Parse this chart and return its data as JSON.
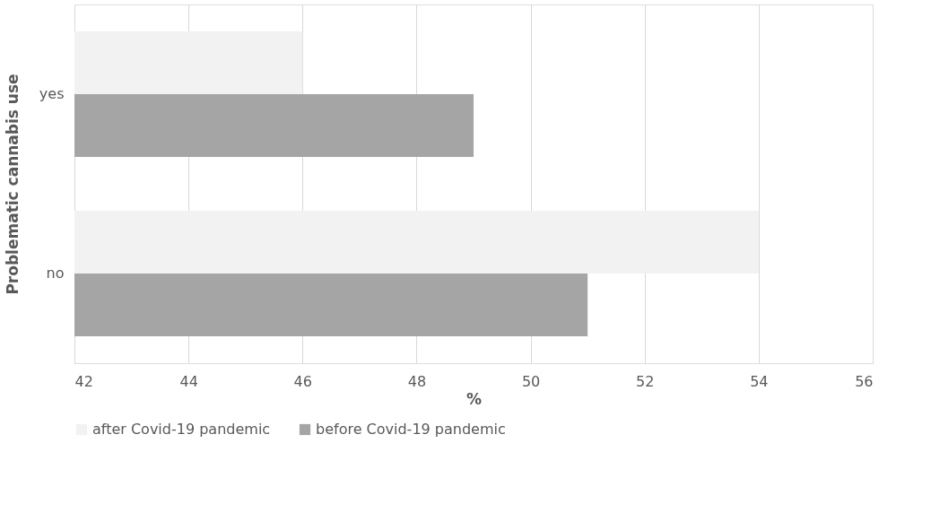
{
  "chart_data": {
    "type": "bar",
    "orientation": "horizontal",
    "xlabel": "%",
    "ylabel": "Problematic cannabis use",
    "categories": [
      "yes",
      "no"
    ],
    "series": [
      {
        "name": "after Covid-19 pandemic",
        "color": "#f2f2f2",
        "values": [
          46,
          54
        ]
      },
      {
        "name": "before Covid-19 pandemic",
        "color": "#a5a5a5",
        "values": [
          49,
          51
        ]
      }
    ],
    "xlim": [
      42,
      56
    ],
    "xticks": [
      42,
      44,
      46,
      48,
      50,
      52,
      54,
      56
    ],
    "grid": "x",
    "legend": "bottom"
  }
}
